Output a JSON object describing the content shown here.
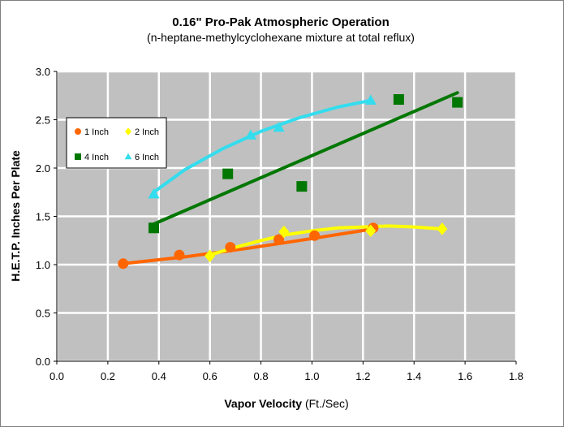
{
  "chart_data": {
    "type": "scatter",
    "title": "0.16\" Pro-Pak Atmospheric Operation",
    "subtitle": "(n-heptane-methylcyclohexane mixture at total reflux)",
    "xlabel": "Vapor Velocity",
    "xlabel_unit": "(Ft./Sec)",
    "ylabel": "H.E.T.P. Inches Per Plate",
    "xlim": [
      0.0,
      1.8
    ],
    "ylim": [
      0.0,
      3.0
    ],
    "x_ticks": [
      "0.0",
      "0.2",
      "0.4",
      "0.6",
      "0.8",
      "1.0",
      "1.2",
      "1.4",
      "1.6",
      "1.8"
    ],
    "y_ticks": [
      "0.0",
      "0.5",
      "1.0",
      "1.5",
      "2.0",
      "2.5",
      "3.0"
    ],
    "grid": true,
    "background": "#c0c0c0",
    "legend_position": "top-left",
    "series": [
      {
        "name": "1 Inch",
        "marker": "circle",
        "color": "#ff6600",
        "points": [
          [
            0.26,
            1.01
          ],
          [
            0.48,
            1.1
          ],
          [
            0.68,
            1.18
          ],
          [
            0.87,
            1.26
          ],
          [
            1.01,
            1.3
          ],
          [
            1.24,
            1.38
          ]
        ],
        "trend": [
          [
            0.26,
            1.01
          ],
          [
            0.5,
            1.08
          ],
          [
            0.75,
            1.17
          ],
          [
            1.0,
            1.27
          ],
          [
            1.24,
            1.37
          ]
        ]
      },
      {
        "name": "2 Inch",
        "marker": "diamond",
        "color": "#ffff00",
        "points": [
          [
            0.6,
            1.09
          ],
          [
            0.89,
            1.34
          ],
          [
            1.23,
            1.35
          ],
          [
            1.51,
            1.37
          ]
        ],
        "trend": [
          [
            0.6,
            1.1
          ],
          [
            0.7,
            1.18
          ],
          [
            0.8,
            1.25
          ],
          [
            0.9,
            1.31
          ],
          [
            1.0,
            1.35
          ],
          [
            1.1,
            1.38
          ],
          [
            1.2,
            1.39
          ],
          [
            1.3,
            1.4
          ],
          [
            1.4,
            1.39
          ],
          [
            1.51,
            1.37
          ]
        ]
      },
      {
        "name": "4 Inch",
        "marker": "square",
        "color": "#007700",
        "points": [
          [
            0.38,
            1.38
          ],
          [
            0.67,
            1.94
          ],
          [
            0.96,
            1.81
          ],
          [
            1.34,
            2.71
          ],
          [
            1.57,
            2.68
          ]
        ],
        "trend": [
          [
            0.38,
            1.42
          ],
          [
            1.57,
            2.78
          ]
        ]
      },
      {
        "name": "6 Inch",
        "marker": "triangle",
        "color": "#33ddee",
        "points": [
          [
            0.38,
            1.73
          ],
          [
            0.76,
            2.34
          ],
          [
            0.87,
            2.42
          ],
          [
            1.23,
            2.7
          ]
        ],
        "trend": [
          [
            0.38,
            1.75
          ],
          [
            0.5,
            1.98
          ],
          [
            0.65,
            2.2
          ],
          [
            0.8,
            2.38
          ],
          [
            0.95,
            2.52
          ],
          [
            1.1,
            2.63
          ],
          [
            1.23,
            2.7
          ]
        ]
      }
    ]
  }
}
